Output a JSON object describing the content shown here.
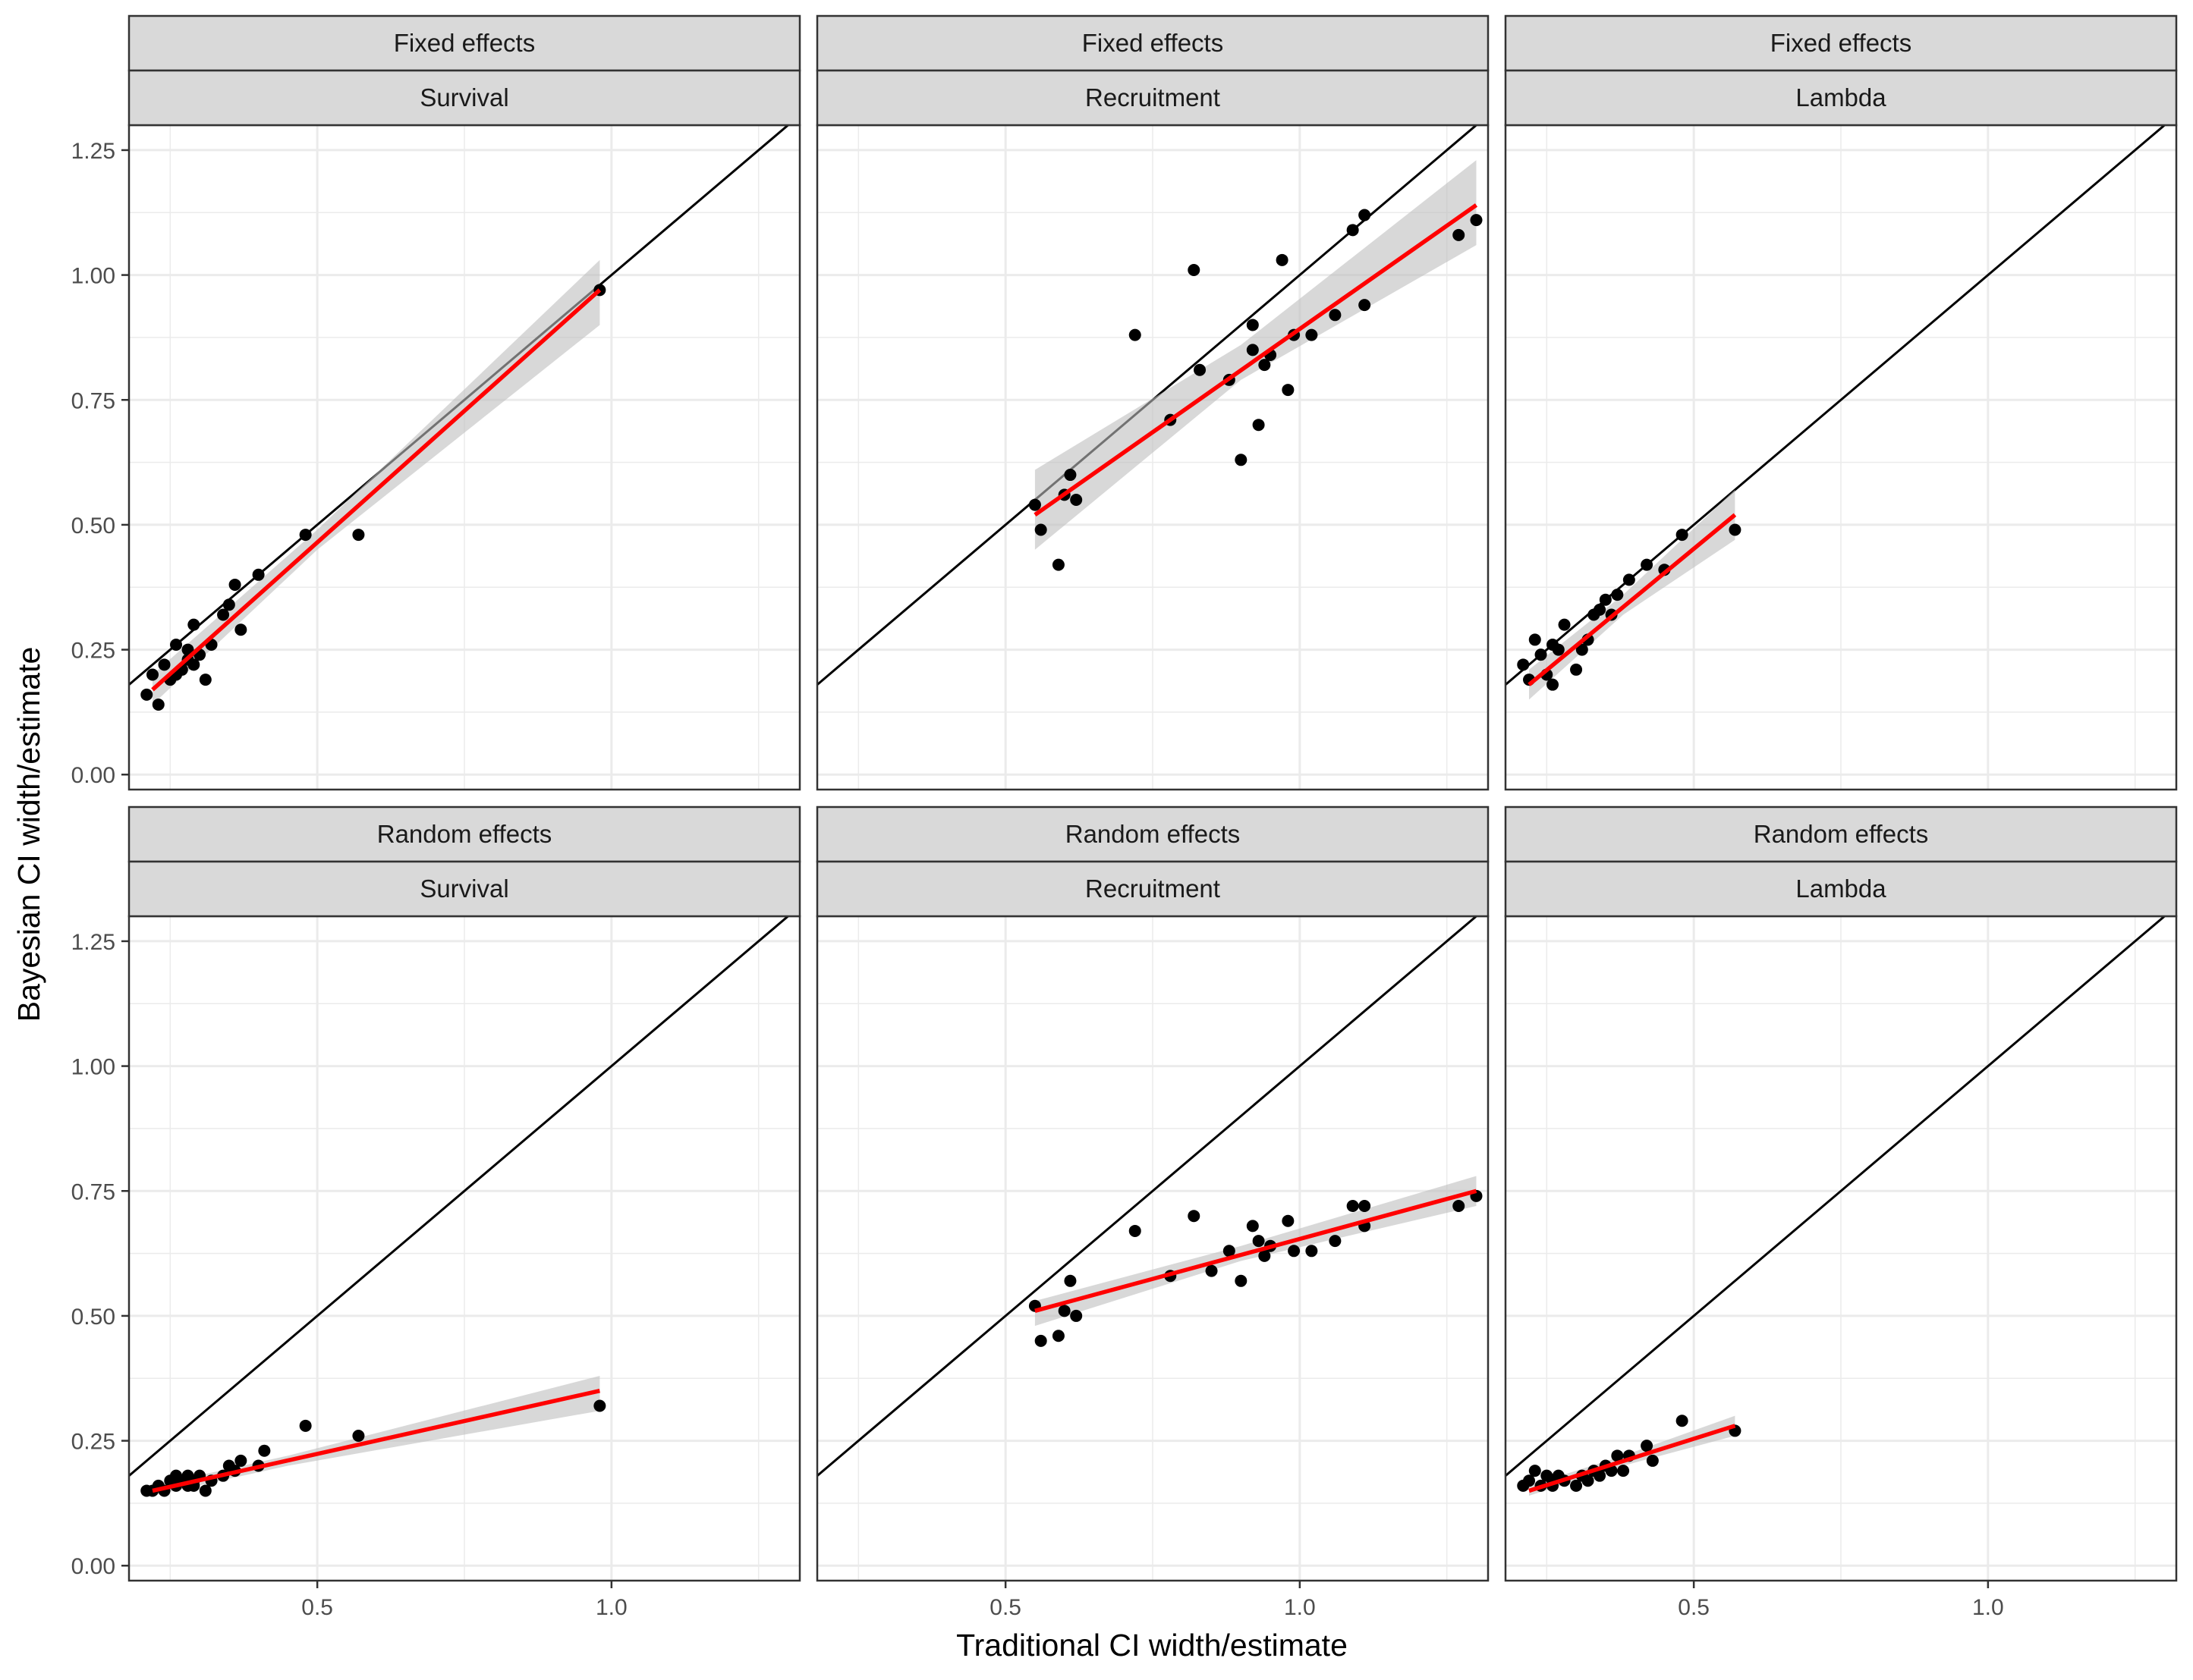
{
  "chart_data": {
    "type": "scatter",
    "facet_rows": [
      "Fixed effects",
      "Random effects"
    ],
    "facet_cols": [
      "Survival",
      "Recruitment",
      "Lambda"
    ],
    "xlabel": "Traditional CI width/estimate",
    "ylabel": "Bayesian CI width/estimate",
    "y_ticks": [
      "0.00",
      "0.25",
      "0.50",
      "0.75",
      "1.00",
      "1.25"
    ],
    "y_tick_values": [
      0,
      0.25,
      0.5,
      0.75,
      1.0,
      1.25
    ],
    "ylim": [
      -0.03,
      1.3
    ],
    "grid": true,
    "reference_line": "y = x",
    "fit": "linear regression with 95% confidence band",
    "colors": {
      "points": "#000000",
      "fit": "#ff0000",
      "band": "#bebebe",
      "strip_fill": "#d9d9d9",
      "grid": "#ebebeb",
      "reference": "#000000"
    },
    "panels": [
      {
        "row": "Fixed effects",
        "col": "Survival",
        "xlim": [
          0.18,
          1.32
        ],
        "x_ticks": [
          "0.5",
          "1.0"
        ],
        "x_tick_values": [
          0.5,
          1.0
        ],
        "x": [
          0.21,
          0.22,
          0.23,
          0.24,
          0.25,
          0.26,
          0.26,
          0.27,
          0.28,
          0.28,
          0.29,
          0.29,
          0.3,
          0.31,
          0.32,
          0.34,
          0.35,
          0.36,
          0.37,
          0.4,
          0.48,
          0.57,
          0.98
        ],
        "y": [
          0.16,
          0.2,
          0.14,
          0.22,
          0.19,
          0.26,
          0.2,
          0.21,
          0.23,
          0.25,
          0.3,
          0.22,
          0.24,
          0.19,
          0.26,
          0.32,
          0.34,
          0.38,
          0.29,
          0.4,
          0.48,
          0.48,
          0.97
        ],
        "fit": {
          "x": [
            0.22,
            0.98
          ],
          "y": [
            0.17,
            0.97
          ]
        },
        "band": {
          "x": [
            0.22,
            0.5,
            0.98
          ],
          "lower": [
            0.14,
            0.45,
            0.9
          ],
          "upper": [
            0.2,
            0.49,
            1.03
          ]
        }
      },
      {
        "row": "Fixed effects",
        "col": "Recruitment",
        "xlim": [
          0.18,
          1.32
        ],
        "x_ticks": [
          "0.5",
          "1.0"
        ],
        "x_tick_values": [
          0.5,
          1.0
        ],
        "x": [
          0.55,
          0.56,
          0.59,
          0.6,
          0.61,
          0.62,
          0.72,
          0.78,
          0.82,
          0.83,
          0.88,
          0.9,
          0.92,
          0.92,
          0.93,
          0.94,
          0.95,
          0.97,
          0.98,
          0.99,
          1.02,
          1.06,
          1.09,
          1.11,
          1.11,
          1.27,
          1.3
        ],
        "y": [
          0.54,
          0.49,
          0.42,
          0.56,
          0.6,
          0.55,
          0.88,
          0.71,
          1.01,
          0.81,
          0.79,
          0.63,
          0.85,
          0.9,
          0.7,
          0.82,
          0.84,
          1.03,
          0.77,
          0.88,
          0.88,
          0.92,
          1.09,
          1.12,
          0.94,
          1.08,
          1.11
        ],
        "fit": {
          "x": [
            0.55,
            1.3
          ],
          "y": [
            0.52,
            1.14
          ]
        },
        "band": {
          "x": [
            0.55,
            0.9,
            1.3
          ],
          "lower": [
            0.45,
            0.79,
            1.06
          ],
          "upper": [
            0.61,
            0.86,
            1.23
          ]
        }
      },
      {
        "row": "Fixed effects",
        "col": "Lambda",
        "xlim": [
          0.18,
          1.32
        ],
        "x_ticks": [
          "0.5",
          "1.0"
        ],
        "x_tick_values": [
          0.5,
          1.0
        ],
        "x": [
          0.21,
          0.22,
          0.23,
          0.24,
          0.25,
          0.26,
          0.26,
          0.27,
          0.28,
          0.3,
          0.31,
          0.32,
          0.33,
          0.34,
          0.35,
          0.36,
          0.37,
          0.39,
          0.42,
          0.45,
          0.48,
          0.57
        ],
        "y": [
          0.22,
          0.19,
          0.27,
          0.24,
          0.2,
          0.18,
          0.26,
          0.25,
          0.3,
          0.21,
          0.25,
          0.27,
          0.32,
          0.33,
          0.35,
          0.32,
          0.36,
          0.39,
          0.42,
          0.41,
          0.48,
          0.49
        ],
        "fit": {
          "x": [
            0.22,
            0.57
          ],
          "y": [
            0.18,
            0.52
          ]
        },
        "band": {
          "x": [
            0.22,
            0.38,
            0.57
          ],
          "lower": [
            0.15,
            0.32,
            0.47
          ],
          "upper": [
            0.21,
            0.36,
            0.57
          ]
        }
      },
      {
        "row": "Random effects",
        "col": "Survival",
        "xlim": [
          0.18,
          1.32
        ],
        "x_ticks": [
          "0.5",
          "1.0"
        ],
        "x_tick_values": [
          0.5,
          1.0
        ],
        "x": [
          0.21,
          0.22,
          0.23,
          0.24,
          0.25,
          0.26,
          0.26,
          0.27,
          0.28,
          0.28,
          0.29,
          0.29,
          0.3,
          0.31,
          0.32,
          0.34,
          0.35,
          0.36,
          0.37,
          0.4,
          0.41,
          0.48,
          0.57,
          0.98
        ],
        "y": [
          0.15,
          0.15,
          0.16,
          0.15,
          0.17,
          0.16,
          0.18,
          0.17,
          0.16,
          0.18,
          0.17,
          0.16,
          0.18,
          0.15,
          0.17,
          0.18,
          0.2,
          0.19,
          0.21,
          0.2,
          0.23,
          0.28,
          0.26,
          0.32
        ],
        "fit": {
          "x": [
            0.22,
            0.98
          ],
          "y": [
            0.15,
            0.35
          ]
        },
        "band": {
          "x": [
            0.22,
            0.45,
            0.98
          ],
          "lower": [
            0.14,
            0.2,
            0.31
          ],
          "upper": [
            0.16,
            0.22,
            0.38
          ]
        }
      },
      {
        "row": "Random effects",
        "col": "Recruitment",
        "xlim": [
          0.18,
          1.32
        ],
        "x_ticks": [
          "0.5",
          "1.0"
        ],
        "x_tick_values": [
          0.5,
          1.0
        ],
        "x": [
          0.55,
          0.56,
          0.59,
          0.6,
          0.61,
          0.62,
          0.72,
          0.78,
          0.82,
          0.85,
          0.88,
          0.9,
          0.92,
          0.93,
          0.94,
          0.95,
          0.98,
          0.99,
          1.02,
          1.06,
          1.09,
          1.11,
          1.11,
          1.27,
          1.3
        ],
        "y": [
          0.52,
          0.45,
          0.46,
          0.51,
          0.57,
          0.5,
          0.67,
          0.58,
          0.7,
          0.59,
          0.63,
          0.57,
          0.68,
          0.65,
          0.62,
          0.64,
          0.69,
          0.63,
          0.63,
          0.65,
          0.72,
          0.72,
          0.68,
          0.72,
          0.74
        ],
        "fit": {
          "x": [
            0.55,
            1.3
          ],
          "y": [
            0.51,
            0.75
          ]
        },
        "band": {
          "x": [
            0.55,
            0.9,
            1.3
          ],
          "lower": [
            0.48,
            0.61,
            0.72
          ],
          "upper": [
            0.53,
            0.64,
            0.78
          ]
        }
      },
      {
        "row": "Random effects",
        "col": "Lambda",
        "xlim": [
          0.18,
          1.32
        ],
        "x_ticks": [
          "0.5",
          "1.0"
        ],
        "x_tick_values": [
          0.5,
          1.0
        ],
        "x": [
          0.21,
          0.22,
          0.23,
          0.24,
          0.25,
          0.26,
          0.26,
          0.27,
          0.28,
          0.3,
          0.31,
          0.32,
          0.33,
          0.34,
          0.35,
          0.36,
          0.37,
          0.38,
          0.39,
          0.42,
          0.43,
          0.48,
          0.57
        ],
        "y": [
          0.16,
          0.17,
          0.19,
          0.16,
          0.18,
          0.17,
          0.16,
          0.18,
          0.17,
          0.16,
          0.18,
          0.17,
          0.19,
          0.18,
          0.2,
          0.19,
          0.22,
          0.19,
          0.22,
          0.24,
          0.21,
          0.29,
          0.27
        ],
        "fit": {
          "x": [
            0.22,
            0.57
          ],
          "y": [
            0.15,
            0.28
          ]
        },
        "band": {
          "x": [
            0.22,
            0.38,
            0.57
          ],
          "lower": [
            0.14,
            0.2,
            0.26
          ],
          "upper": [
            0.16,
            0.22,
            0.3
          ]
        }
      }
    ]
  }
}
